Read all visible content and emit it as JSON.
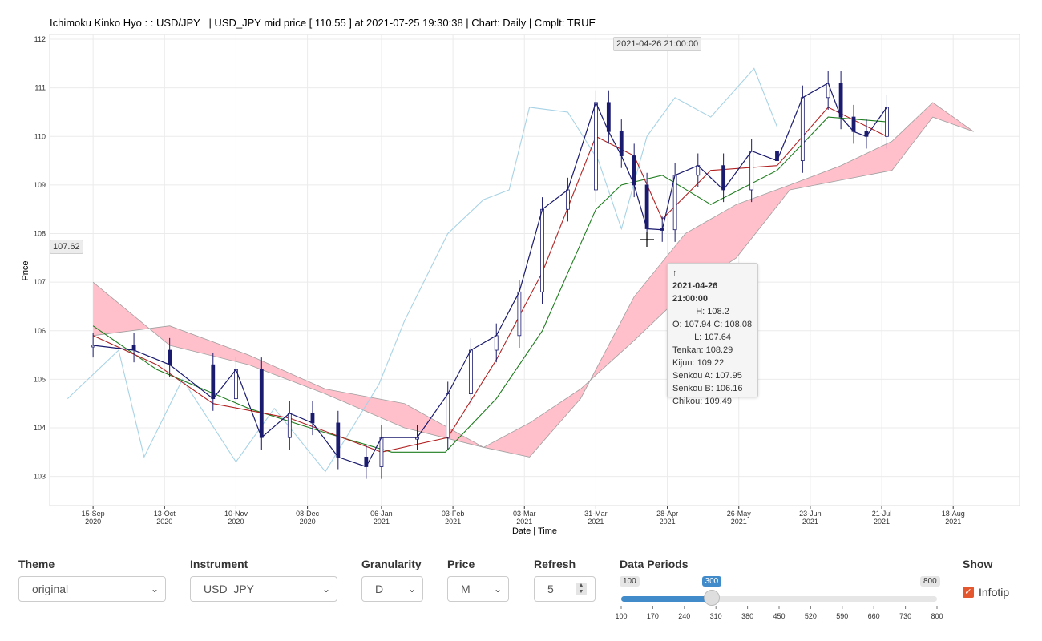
{
  "header": {
    "title": "Ichimoku Kinko Hyo : : USD/JPY   | USD_JPY mid price [ 110.55 ] at 2021-07-25 19:30:38 | Chart: Daily | Cmplt: TRUE"
  },
  "hover": {
    "x_label": "2021-04-26 21:00:00",
    "y_label": "107.62"
  },
  "tooltip": {
    "arrow": "↑",
    "date": "2021-04-26 21:00:00",
    "high": "H: 108.2",
    "open_close": "O: 107.94  C: 108.08",
    "low": "L: 107.64",
    "tenkan": "Tenkan: 108.29",
    "kijun": "Kijun: 109.22",
    "senkou_a": "Senkou A: 107.95",
    "senkou_b": "Senkou B: 106.16",
    "chikou": "Chikou: 109.49"
  },
  "colors": {
    "candle": "#1a1a6e",
    "tenkan": "#b22222",
    "kijun": "#1e7d1e",
    "chikou": "#a7d3e6",
    "cloud": "#ffc0cb",
    "cloud_edge": "#a0a0a0",
    "grid": "#ebebeb",
    "accent": "#e4572e",
    "slider": "#428bca"
  },
  "chart_data": {
    "type": "candlestick",
    "title": "Ichimoku Kinko Hyo : : USD/JPY   | USD_JPY mid price [ 110.55 ] at 2021-07-25 19:30:38 | Chart: Daily | Cmplt: TRUE",
    "xlabel": "Date | Time",
    "ylabel": "Price",
    "xlim": [
      "2020-08-29",
      "2021-09-13"
    ],
    "ylim": [
      102.4,
      112.1
    ],
    "y_ticks": [
      "103",
      "104",
      "105",
      "106",
      "107",
      "108",
      "109",
      "110",
      "111",
      "112"
    ],
    "x_ticks": [
      {
        "date": "2020-09-15",
        "day": "15-Sep",
        "year": "2020"
      },
      {
        "date": "2020-10-13",
        "day": "13-Oct",
        "year": "2020"
      },
      {
        "date": "2020-11-10",
        "day": "10-Nov",
        "year": "2020"
      },
      {
        "date": "2020-12-08",
        "day": "08-Dec",
        "year": "2020"
      },
      {
        "date": "2021-01-06",
        "day": "06-Jan",
        "year": "2021"
      },
      {
        "date": "2021-02-03",
        "day": "03-Feb",
        "year": "2021"
      },
      {
        "date": "2021-03-03",
        "day": "03-Mar",
        "year": "2021"
      },
      {
        "date": "2021-03-31",
        "day": "31-Mar",
        "year": "2021"
      },
      {
        "date": "2021-04-28",
        "day": "28-Apr",
        "year": "2021"
      },
      {
        "date": "2021-05-26",
        "day": "26-May",
        "year": "2021"
      },
      {
        "date": "2021-06-23",
        "day": "23-Jun",
        "year": "2021"
      },
      {
        "date": "2021-07-21",
        "day": "21-Jul",
        "year": "2021"
      },
      {
        "date": "2021-08-18",
        "day": "18-Aug",
        "year": "2021"
      }
    ],
    "grid": true,
    "series": [
      {
        "name": "Close",
        "x": [
          "2020-09-15",
          "2020-10-01",
          "2020-10-15",
          "2020-11-01",
          "2020-11-10",
          "2020-11-20",
          "2020-12-01",
          "2020-12-10",
          "2020-12-20",
          "2020-12-31",
          "2021-01-06",
          "2021-01-20",
          "2021-02-01",
          "2021-02-10",
          "2021-02-20",
          "2021-03-01",
          "2021-03-10",
          "2021-03-20",
          "2021-03-31",
          "2021-04-05",
          "2021-04-10",
          "2021-04-15",
          "2021-04-20",
          "2021-04-26",
          "2021-05-01",
          "2021-05-10",
          "2021-05-20",
          "2021-05-31",
          "2021-06-10",
          "2021-06-20",
          "2021-06-30",
          "2021-07-05",
          "2021-07-10",
          "2021-07-15",
          "2021-07-23"
        ],
        "values": [
          105.7,
          105.6,
          105.3,
          104.6,
          105.2,
          103.8,
          104.3,
          104.1,
          103.4,
          103.2,
          103.8,
          103.8,
          104.7,
          105.6,
          105.9,
          106.8,
          108.5,
          108.9,
          110.7,
          110.1,
          109.6,
          109.0,
          108.1,
          108.08,
          109.2,
          109.4,
          108.9,
          109.7,
          109.5,
          110.8,
          111.1,
          110.4,
          110.1,
          110.0,
          110.6
        ]
      },
      {
        "name": "Tenkan",
        "x": [
          "2020-09-15",
          "2020-10-10",
          "2020-11-01",
          "2020-12-01",
          "2021-01-06",
          "2021-02-01",
          "2021-02-20",
          "2021-03-10",
          "2021-03-31",
          "2021-04-15",
          "2021-04-26",
          "2021-05-15",
          "2021-06-10",
          "2021-06-30",
          "2021-07-23"
        ],
        "values": [
          105.9,
          105.3,
          104.5,
          104.2,
          103.5,
          103.8,
          105.4,
          107.2,
          110.0,
          109.6,
          108.3,
          109.3,
          109.4,
          110.6,
          110.0
        ]
      },
      {
        "name": "Kijun",
        "x": [
          "2020-09-15",
          "2020-10-10",
          "2020-11-15",
          "2020-12-15",
          "2021-01-10",
          "2021-01-31",
          "2021-02-20",
          "2021-03-10",
          "2021-03-31",
          "2021-04-10",
          "2021-04-26",
          "2021-05-15",
          "2021-06-10",
          "2021-06-30",
          "2021-07-23"
        ],
        "values": [
          106.1,
          105.2,
          104.4,
          103.9,
          103.5,
          103.5,
          104.6,
          106.0,
          108.5,
          109.0,
          109.2,
          108.6,
          109.3,
          110.4,
          110.3
        ]
      },
      {
        "name": "Chikou",
        "x": [
          "2020-09-05",
          "2020-09-25",
          "2020-10-05",
          "2020-10-20",
          "2020-11-10",
          "2020-11-25",
          "2020-12-15",
          "2021-01-05",
          "2021-01-15",
          "2021-02-01",
          "2021-02-15",
          "2021-02-25",
          "2021-03-05",
          "2021-03-20",
          "2021-04-01",
          "2021-04-10",
          "2021-04-20",
          "2021-05-01",
          "2021-05-15",
          "2021-06-01",
          "2021-06-10"
        ],
        "values": [
          104.6,
          105.6,
          103.4,
          105.0,
          103.3,
          104.4,
          103.1,
          104.9,
          106.2,
          108.0,
          108.7,
          108.9,
          110.6,
          110.5,
          109.5,
          108.1,
          110.0,
          110.8,
          110.4,
          111.4,
          110.2
        ]
      },
      {
        "name": "Senkou A",
        "x": [
          "2020-09-15",
          "2020-10-15",
          "2020-11-15",
          "2020-12-15",
          "2021-01-15",
          "2021-02-15",
          "2021-03-05",
          "2021-03-25",
          "2021-04-15",
          "2021-05-05",
          "2021-05-25",
          "2021-06-15",
          "2021-07-05",
          "2021-07-25",
          "2021-08-10",
          "2021-08-26"
        ],
        "values": [
          107.0,
          105.7,
          105.3,
          104.7,
          104.0,
          103.6,
          103.4,
          104.6,
          106.7,
          108.0,
          108.6,
          109.0,
          109.4,
          109.9,
          110.7,
          110.1
        ]
      },
      {
        "name": "Senkou B",
        "x": [
          "2020-09-15",
          "2020-10-15",
          "2020-11-15",
          "2020-12-15",
          "2021-01-15",
          "2021-02-15",
          "2021-03-05",
          "2021-03-25",
          "2021-04-15",
          "2021-05-05",
          "2021-05-25",
          "2021-06-15",
          "2021-07-05",
          "2021-07-25",
          "2021-08-10",
          "2021-08-26"
        ],
        "values": [
          105.9,
          106.1,
          105.5,
          104.8,
          104.5,
          103.6,
          104.1,
          104.8,
          105.8,
          106.8,
          107.5,
          108.9,
          109.1,
          109.3,
          110.4,
          110.1
        ]
      }
    ]
  },
  "controls": {
    "theme": {
      "label": "Theme",
      "value": "original"
    },
    "instrument": {
      "label": "Instrument",
      "value": "USD_JPY"
    },
    "granularity": {
      "label": "Granularity",
      "value": "D"
    },
    "price": {
      "label": "Price",
      "value": "M"
    },
    "refresh": {
      "label": "Refresh",
      "value": "5"
    },
    "data_periods": {
      "label": "Data Periods",
      "min": 100,
      "max": 800,
      "value": 300,
      "min_label": "100",
      "max_label": "800",
      "value_label": "300",
      "ticks": [
        "100",
        "170",
        "240",
        "310",
        "380",
        "450",
        "520",
        "590",
        "660",
        "730",
        "800"
      ]
    },
    "show": {
      "label": "Show",
      "infotip_label": "Infotip",
      "infotip_checked": true
    }
  }
}
